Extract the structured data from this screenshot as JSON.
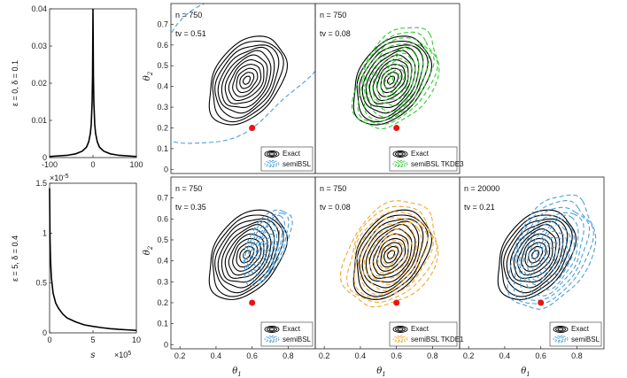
{
  "chart_data": [
    {
      "id": "kernel-top",
      "type": "line",
      "ylabel": "ε = 0, δ = 0.1",
      "xlim": [
        -100,
        100
      ],
      "ylim": [
        0,
        0.04
      ],
      "xticks": [
        "-100",
        "0",
        "100"
      ],
      "yticks": [
        "0",
        "0.01",
        "0.02",
        "0.03",
        "0.04"
      ],
      "x": [
        -100,
        -60,
        -40,
        -25,
        -15,
        -10,
        -6,
        -4,
        -2,
        -1,
        0,
        1,
        2,
        4,
        6,
        10,
        15,
        25,
        40,
        60,
        100
      ],
      "y": [
        0.0003,
        0.0006,
        0.001,
        0.0017,
        0.0028,
        0.0042,
        0.0065,
        0.009,
        0.015,
        0.022,
        0.04,
        0.022,
        0.015,
        0.009,
        0.0065,
        0.0042,
        0.0028,
        0.0017,
        0.001,
        0.0006,
        0.0003
      ]
    },
    {
      "id": "kernel-bottom",
      "type": "line",
      "ylabel": "ε = 5, δ = 0.4",
      "xlabel": "s",
      "xlim": [
        0,
        1000000
      ],
      "ylim": [
        0,
        1.5e-05
      ],
      "xticks": [
        "0",
        "5",
        "10"
      ],
      "yticks": [
        "0",
        "0.5",
        "1",
        "1.5"
      ],
      "xexponent": "×10",
      "xexponent_power": "5",
      "yexponent": "×10",
      "yexponent_power": "-5",
      "x": [
        0,
        5000,
        10000,
        20000,
        40000,
        70000,
        100000,
        150000,
        200000,
        300000,
        400000,
        500000,
        600000,
        700000,
        800000,
        900000,
        1000000
      ],
      "y": [
        1.45e-05,
        9.5e-06,
        7.5e-06,
        5.6e-06,
        4e-06,
        3e-06,
        2.5e-06,
        1.9e-06,
        1.5e-06,
        1.1e-06,
        8e-07,
        6.5e-07,
        5.2e-07,
        4.2e-07,
        3.5e-07,
        3e-07,
        2.5e-07
      ]
    },
    {
      "id": "panel-top-1",
      "type": "contour",
      "n_label": "n = 750",
      "tv_label": "tv = 0.51",
      "xlim": [
        0.15,
        0.95
      ],
      "ylim": [
        -0.02,
        0.8
      ],
      "xticks": [],
      "yticks": [
        "0",
        "0.1",
        "0.2",
        "0.3",
        "0.4",
        "0.5",
        "0.6",
        "0.7"
      ],
      "ylabel": "θ",
      "ylabel_sub": "2",
      "exact": {
        "cx": 0.57,
        "cy": 0.43,
        "rmax": 0.25,
        "rmin": 0.17,
        "angle": 45,
        "levels": 11
      },
      "approx": {
        "color": "#4a9fdc",
        "cx": 0.52,
        "cy": 0.52,
        "rmax": 0.55,
        "rmin": 0.32,
        "angle": 30,
        "levels": 1
      },
      "true_point": {
        "x": 0.6,
        "y": 0.2
      },
      "legend": [
        "Exact",
        "semiBSL"
      ]
    },
    {
      "id": "panel-top-2",
      "type": "contour",
      "n_label": "n = 750",
      "tv_label": "tv = 0.08",
      "xlim": [
        0.15,
        0.95
      ],
      "ylim": [
        -0.02,
        0.8
      ],
      "xticks": [],
      "yticks": [],
      "exact": {
        "cx": 0.57,
        "cy": 0.43,
        "rmax": 0.25,
        "rmin": 0.17,
        "angle": 45,
        "levels": 11
      },
      "approx": {
        "color": "#33cc33",
        "cx": 0.6,
        "cy": 0.44,
        "rmax": 0.28,
        "rmin": 0.19,
        "angle": 48,
        "levels": 11
      },
      "true_point": {
        "x": 0.6,
        "y": 0.2
      },
      "legend": [
        "Exact",
        "semiBSL TKDE3"
      ]
    },
    {
      "id": "panel-bottom-1",
      "type": "contour",
      "n_label": "n = 750",
      "tv_label": "tv = 0.35",
      "xlim": [
        0.15,
        0.95
      ],
      "ylim": [
        -0.02,
        0.8
      ],
      "xticks": [
        "0.2",
        "0.4",
        "0.6",
        "0.8"
      ],
      "yticks": [
        "0",
        "0.1",
        "0.2",
        "0.3",
        "0.4",
        "0.5",
        "0.6",
        "0.7"
      ],
      "xlabel": "θ",
      "xlabel_sub": "1",
      "ylabel": "θ",
      "ylabel_sub": "2",
      "exact": {
        "cx": 0.57,
        "cy": 0.43,
        "rmax": 0.25,
        "rmin": 0.17,
        "angle": 45,
        "levels": 11
      },
      "approx": {
        "color": "#4a9fdc",
        "cx": 0.68,
        "cy": 0.47,
        "rmax": 0.2,
        "rmin": 0.1,
        "angle": 60,
        "levels": 9
      },
      "true_point": {
        "x": 0.6,
        "y": 0.2
      },
      "legend": [
        "Exact",
        "semiBSL"
      ]
    },
    {
      "id": "panel-bottom-2",
      "type": "contour",
      "n_label": "n = 750",
      "tv_label": "tv = 0.08",
      "xlim": [
        0.15,
        0.95
      ],
      "ylim": [
        -0.02,
        0.8
      ],
      "xticks": [
        "0.2",
        "0.4",
        "0.6",
        "0.8"
      ],
      "yticks": [],
      "xlabel": "θ",
      "xlabel_sub": "1",
      "exact": {
        "cx": 0.57,
        "cy": 0.43,
        "rmax": 0.25,
        "rmin": 0.17,
        "angle": 45,
        "levels": 11
      },
      "approx": {
        "color": "#f0a830",
        "cx": 0.57,
        "cy": 0.43,
        "rmax": 0.29,
        "rmin": 0.22,
        "angle": 40,
        "levels": 11
      },
      "true_point": {
        "x": 0.6,
        "y": 0.2
      },
      "legend": [
        "Exact",
        "semiBSL TKDE1"
      ]
    },
    {
      "id": "panel-bottom-3",
      "type": "contour",
      "n_label": "n = 20000",
      "tv_label": "tv = 0.21",
      "xlim": [
        0.15,
        0.95
      ],
      "ylim": [
        -0.02,
        0.8
      ],
      "xticks": [
        "0.2",
        "0.4",
        "0.6",
        "0.8"
      ],
      "yticks": [],
      "xlabel": "θ",
      "xlabel_sub": "1",
      "exact": {
        "cx": 0.57,
        "cy": 0.43,
        "rmax": 0.25,
        "rmin": 0.17,
        "angle": 45,
        "levels": 11
      },
      "approx": {
        "color": "#4a9fdc",
        "cx": 0.66,
        "cy": 0.44,
        "rmax": 0.3,
        "rmin": 0.2,
        "angle": 55,
        "levels": 11
      },
      "true_point": {
        "x": 0.6,
        "y": 0.2
      },
      "legend": [
        "Exact",
        "semiBSL"
      ]
    }
  ]
}
